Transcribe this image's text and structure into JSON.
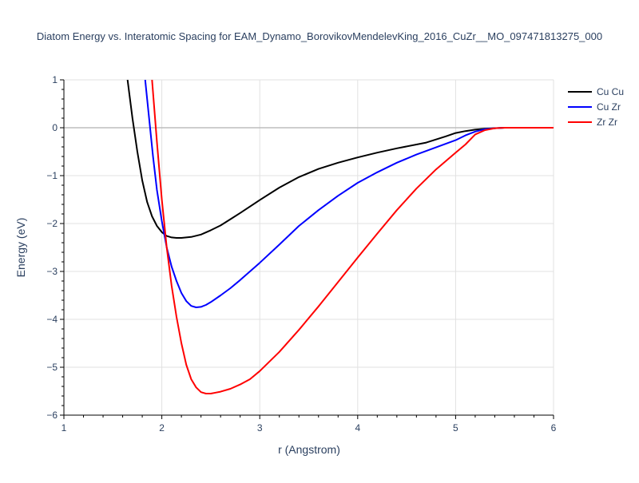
{
  "chart_data": {
    "type": "line",
    "title": "Diatom Energy vs. Interatomic Spacing for EAM_Dynamo_BorovikovMendelevKing_2016_CuZr__MO_097471813275_000",
    "xlabel": "r (Angstrom)",
    "ylabel": "Energy (eV)",
    "xlim": [
      1,
      6
    ],
    "ylim": [
      -6,
      1
    ],
    "xticks": [
      1,
      2,
      3,
      4,
      5,
      6
    ],
    "xtick_labels": [
      "1",
      "2",
      "3",
      "4",
      "5",
      "6"
    ],
    "yticks": [
      -6,
      -5,
      -4,
      -3,
      -2,
      -1,
      0,
      1
    ],
    "ytick_labels": [
      "−6",
      "−5",
      "−4",
      "−3",
      "−2",
      "−1",
      "0",
      "1"
    ],
    "grid": true,
    "legend_position": "top-right",
    "series": [
      {
        "name": "Cu Cu",
        "color": "#000000",
        "x": [
          1.65,
          1.7,
          1.75,
          1.8,
          1.85,
          1.9,
          1.95,
          2.0,
          2.05,
          2.1,
          2.15,
          2.2,
          2.3,
          2.4,
          2.5,
          2.6,
          2.7,
          2.8,
          3.0,
          3.2,
          3.4,
          3.6,
          3.8,
          4.0,
          4.2,
          4.4,
          4.7,
          4.9,
          5.0,
          5.1,
          5.2,
          5.3,
          5.4,
          5.5,
          6.0
        ],
        "y": [
          1.0,
          0.2,
          -0.5,
          -1.1,
          -1.55,
          -1.85,
          -2.05,
          -2.18,
          -2.26,
          -2.29,
          -2.3,
          -2.3,
          -2.28,
          -2.23,
          -2.14,
          -2.04,
          -1.91,
          -1.78,
          -1.51,
          -1.25,
          -1.03,
          -0.86,
          -0.73,
          -0.62,
          -0.52,
          -0.43,
          -0.31,
          -0.18,
          -0.11,
          -0.07,
          -0.04,
          -0.02,
          -0.01,
          0.0,
          0.0
        ]
      },
      {
        "name": "Cu Zr",
        "color": "#0000ff",
        "x": [
          1.83,
          1.87,
          1.91,
          1.95,
          2.0,
          2.05,
          2.1,
          2.15,
          2.2,
          2.25,
          2.3,
          2.35,
          2.4,
          2.45,
          2.5,
          2.6,
          2.7,
          2.8,
          3.0,
          3.2,
          3.4,
          3.6,
          3.8,
          4.0,
          4.2,
          4.4,
          4.6,
          4.8,
          5.0,
          5.1,
          5.2,
          5.3,
          5.4,
          5.5,
          6.0
        ],
        "y": [
          1.0,
          0.2,
          -0.6,
          -1.3,
          -1.95,
          -2.5,
          -2.9,
          -3.2,
          -3.45,
          -3.62,
          -3.72,
          -3.75,
          -3.74,
          -3.7,
          -3.64,
          -3.5,
          -3.35,
          -3.18,
          -2.82,
          -2.44,
          -2.05,
          -1.72,
          -1.42,
          -1.15,
          -0.93,
          -0.73,
          -0.56,
          -0.41,
          -0.26,
          -0.16,
          -0.08,
          -0.03,
          -0.01,
          0.0,
          0.0
        ]
      },
      {
        "name": "Zr Zr",
        "color": "#ff0000",
        "x": [
          1.9,
          1.95,
          2.0,
          2.05,
          2.1,
          2.15,
          2.2,
          2.25,
          2.3,
          2.35,
          2.4,
          2.45,
          2.5,
          2.55,
          2.6,
          2.7,
          2.8,
          2.9,
          3.0,
          3.2,
          3.4,
          3.6,
          3.8,
          4.0,
          4.2,
          4.4,
          4.6,
          4.8,
          5.0,
          5.1,
          5.2,
          5.3,
          5.4,
          5.5,
          6.0
        ],
        "y": [
          1.0,
          -0.3,
          -1.5,
          -2.5,
          -3.3,
          -3.95,
          -4.5,
          -4.95,
          -5.25,
          -5.42,
          -5.52,
          -5.55,
          -5.55,
          -5.53,
          -5.51,
          -5.45,
          -5.36,
          -5.25,
          -5.08,
          -4.68,
          -4.22,
          -3.73,
          -3.22,
          -2.71,
          -2.21,
          -1.72,
          -1.27,
          -0.87,
          -0.52,
          -0.35,
          -0.14,
          -0.05,
          -0.01,
          0.0,
          0.0
        ]
      }
    ]
  }
}
